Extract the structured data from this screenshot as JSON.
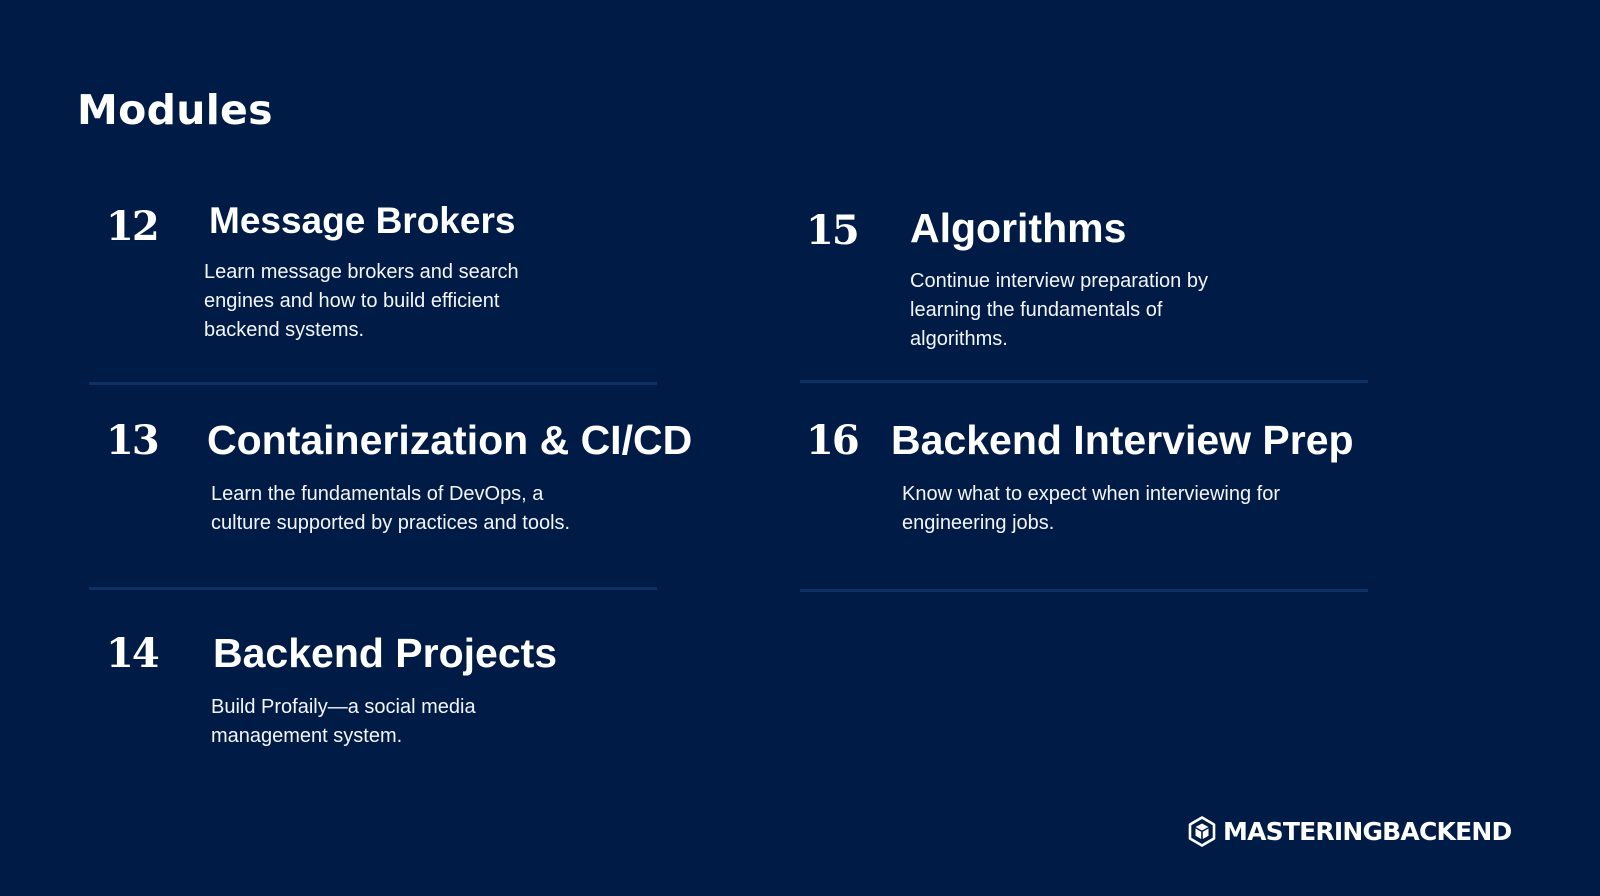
{
  "page": {
    "title": "Modules"
  },
  "modules": [
    {
      "number": "12",
      "title": "Message Brokers",
      "description": "Learn message brokers and search engines and how to build efficient backend systems."
    },
    {
      "number": "13",
      "title": "Containerization & CI/CD",
      "description": "Learn the fundamentals of DevOps, a culture supported by practices and tools."
    },
    {
      "number": "14",
      "title": "Backend Projects",
      "description": "Build Profaily—a social media management system."
    },
    {
      "number": "15",
      "title": "Algorithms",
      "description": "Continue interview preparation by learning the fundamentals of algorithms."
    },
    {
      "number": "16",
      "title": "Backend Interview Prep",
      "description": "Know what to expect when interviewing for engineering jobs."
    }
  ],
  "brand": {
    "name": "MASTERINGBACKEND",
    "icon": "hexagon-cube-icon"
  },
  "colors": {
    "background": "#001c46",
    "divider": "#0c3265",
    "text": "#ffffff"
  }
}
